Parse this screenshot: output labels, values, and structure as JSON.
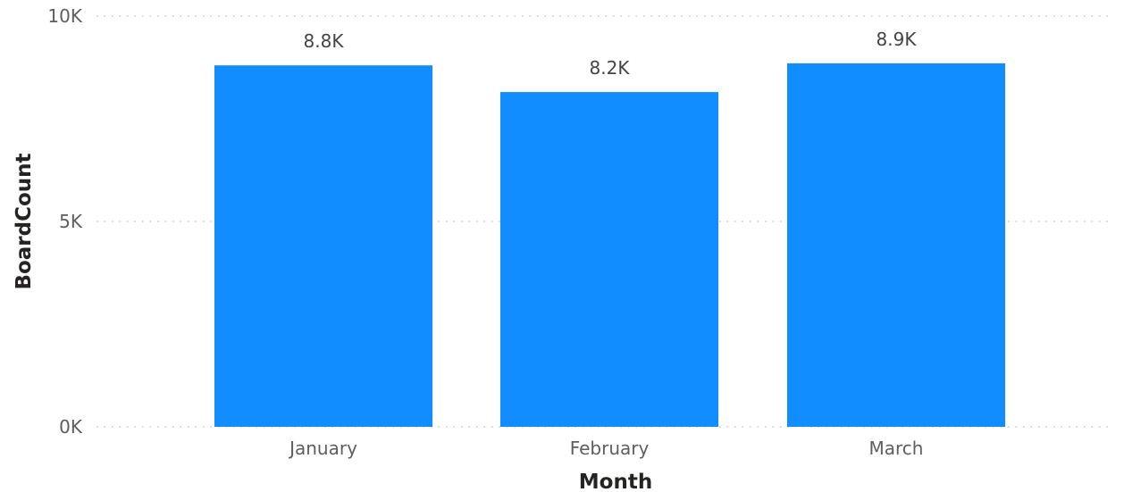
{
  "chart_data": {
    "type": "bar",
    "categories": [
      "January",
      "February",
      "March"
    ],
    "values": [
      8800,
      8150,
      8850
    ],
    "data_labels": [
      "8.8K",
      "8.2K",
      "8.9K"
    ],
    "xlabel": "Month",
    "ylabel": "BoardCount",
    "ylim": [
      0,
      10000
    ],
    "yticks": [
      {
        "value": 0,
        "label": "0K"
      },
      {
        "value": 5000,
        "label": "5K"
      },
      {
        "value": 10000,
        "label": "10K"
      }
    ],
    "grid": true,
    "bar_color": "#118dff"
  }
}
